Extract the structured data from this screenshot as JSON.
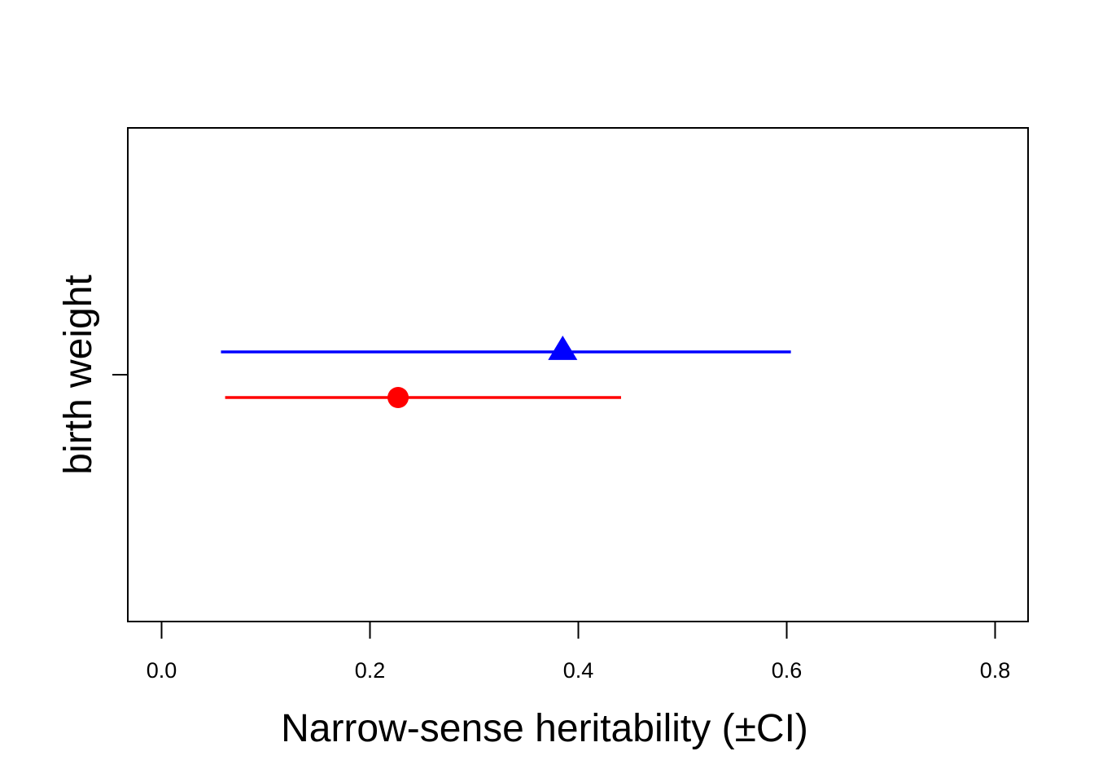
{
  "chart_data": {
    "type": "scatter",
    "title": "",
    "xlabel": "Narrow-sense heritability (±CI)",
    "ylabel": "",
    "categories": [
      "birth weight"
    ],
    "xlim": [
      0.0,
      0.8
    ],
    "x_ticks": [
      "0.0",
      "0.2",
      "0.4",
      "0.6",
      "0.8"
    ],
    "grid": false,
    "legend": "none",
    "series": [
      {
        "marker": "triangle",
        "color": "#0000ff",
        "points": [
          {
            "category": "birth weight",
            "estimate": 0.385,
            "ci_low": 0.057,
            "ci_high": 0.604
          }
        ]
      },
      {
        "marker": "circle",
        "color": "#ff0000",
        "points": [
          {
            "category": "birth weight",
            "estimate": 0.227,
            "ci_low": 0.061,
            "ci_high": 0.441
          }
        ]
      }
    ]
  }
}
